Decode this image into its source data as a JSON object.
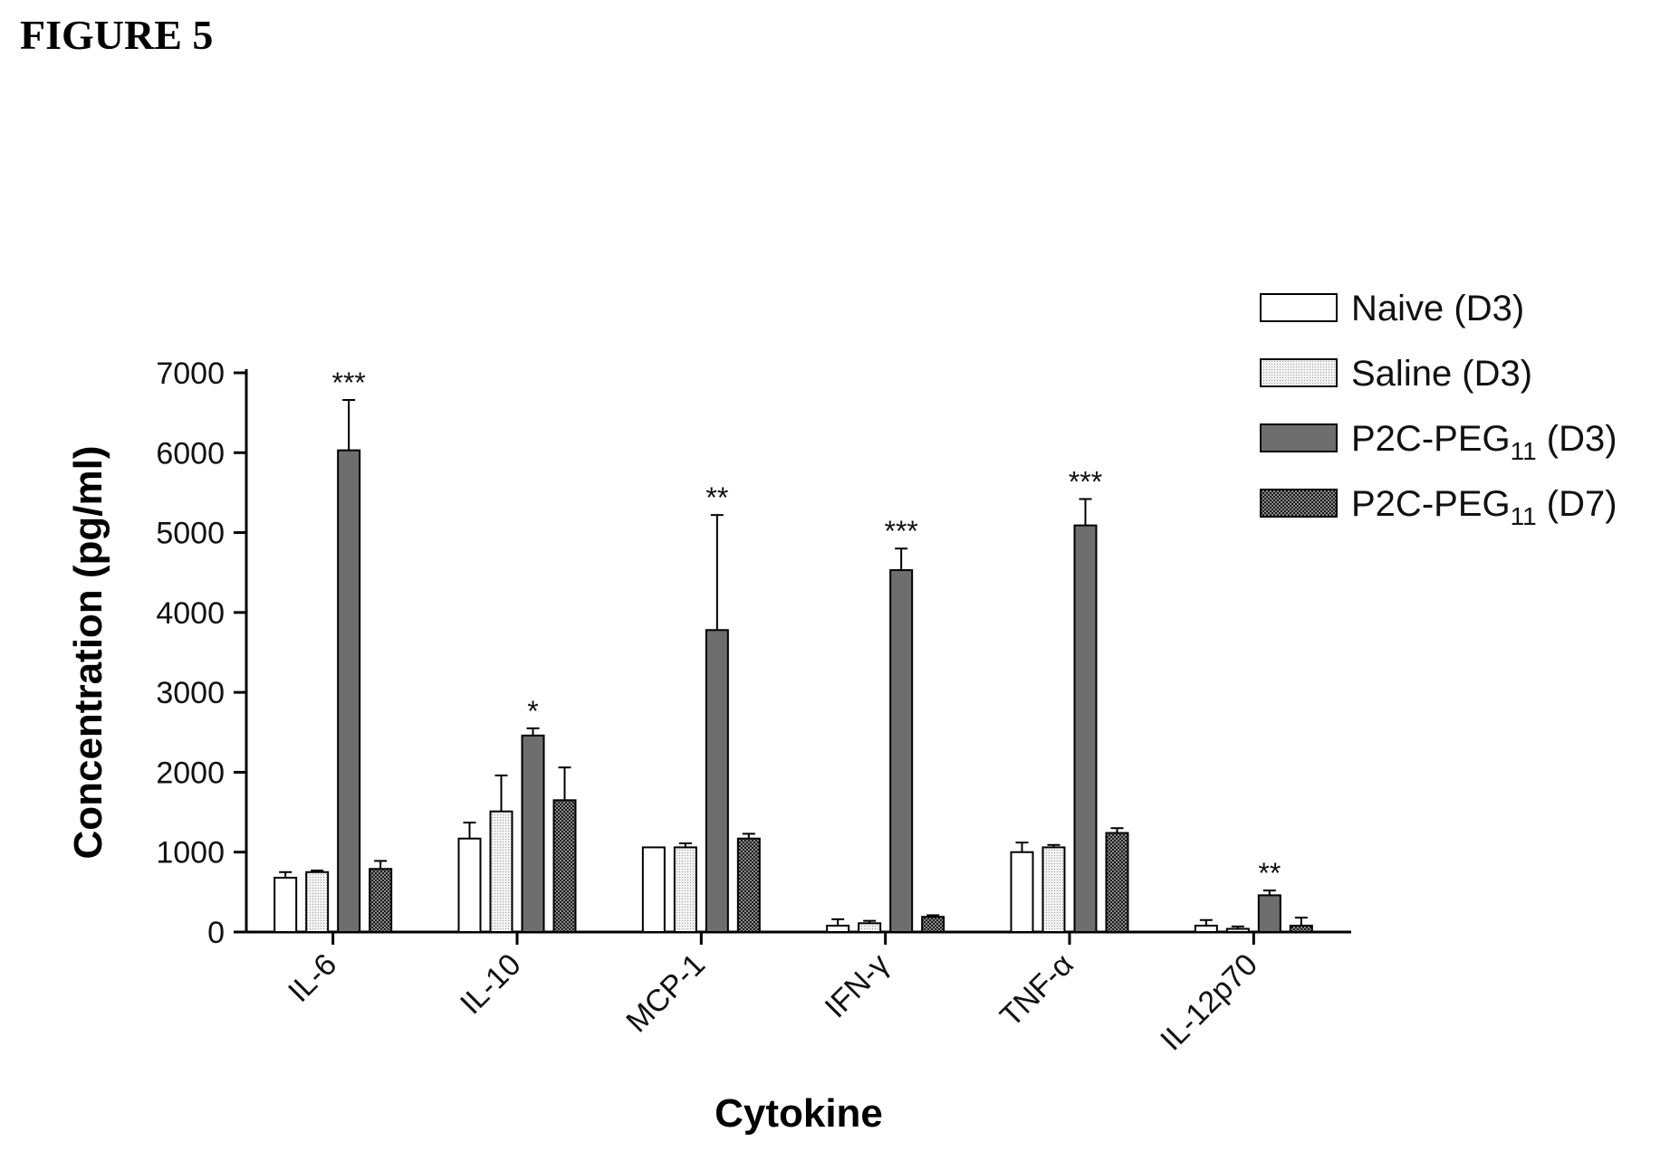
{
  "figure_label": "FIGURE 5",
  "chart_data": {
    "type": "bar",
    "title": "",
    "xlabel": "Cytokine",
    "ylabel": "Concentration (pg/ml)",
    "ylim": [
      0,
      7000
    ],
    "yticks": [
      "0",
      "1000",
      "2000",
      "3000",
      "4000",
      "5000",
      "6000",
      "7000"
    ],
    "categories": [
      "IL-6",
      "IL-10",
      "MCP-1",
      "IFN-γ",
      "TNF-α",
      "IL-12p70"
    ],
    "series": [
      {
        "name": "Naive (D3)",
        "pattern": "white",
        "values": [
          680,
          1170,
          1060,
          80,
          1000,
          80
        ],
        "errors": [
          70,
          200,
          0,
          80,
          120,
          70
        ]
      },
      {
        "name": "Saline (D3)",
        "pattern": "dots",
        "values": [
          750,
          1510,
          1060,
          110,
          1060,
          40
        ],
        "errors": [
          20,
          450,
          50,
          30,
          30,
          30
        ]
      },
      {
        "name": "P2C-PEG",
        "name_subscript": "11",
        "name_suffix": " (D3)",
        "pattern": "gray",
        "values": [
          6030,
          2460,
          3780,
          4530,
          5090,
          460
        ],
        "errors": [
          630,
          90,
          1440,
          270,
          330,
          60
        ]
      },
      {
        "name": "P2C-PEG",
        "name_subscript": "11",
        "name_suffix": " (D7)",
        "pattern": "checker",
        "values": [
          790,
          1650,
          1170,
          190,
          1240,
          80
        ],
        "errors": [
          100,
          410,
          60,
          20,
          60,
          100
        ]
      }
    ],
    "significance": [
      {
        "category": "IL-6",
        "label": "***"
      },
      {
        "category": "IL-10",
        "label": "*"
      },
      {
        "category": "MCP-1",
        "label": "**"
      },
      {
        "category": "IFN-γ",
        "label": "***"
      },
      {
        "category": "TNF-α",
        "label": "***"
      },
      {
        "category": "IL-12p70",
        "label": "**"
      }
    ],
    "legend_position": "top-right",
    "grid": false
  }
}
